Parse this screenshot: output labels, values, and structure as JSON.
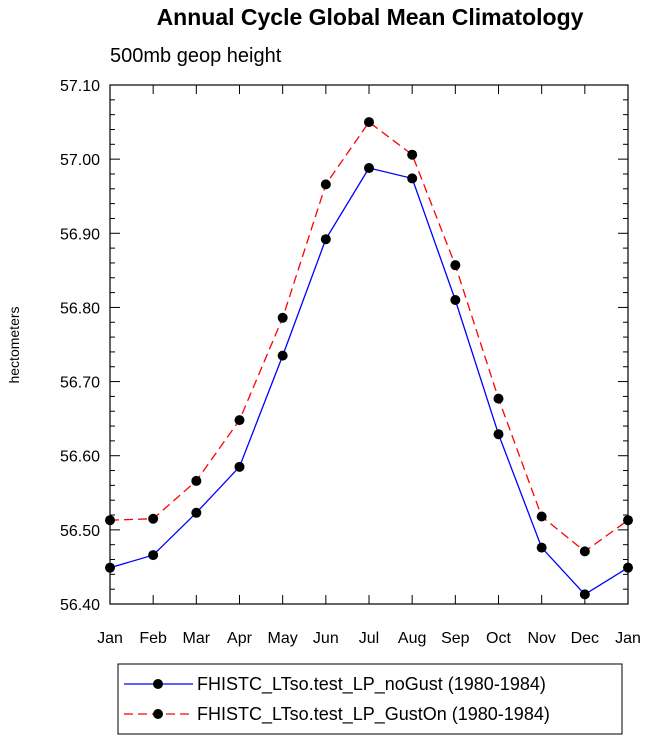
{
  "chart_data": {
    "type": "line",
    "title": "Annual Cycle Global Mean Climatology",
    "subtitle": "500mb geop height",
    "xlabel": "",
    "ylabel": "hectometers",
    "categories": [
      "Jan",
      "Feb",
      "Mar",
      "Apr",
      "May",
      "Jun",
      "Jul",
      "Aug",
      "Sep",
      "Oct",
      "Nov",
      "Dec",
      "Jan"
    ],
    "ylim": [
      56.4,
      57.1
    ],
    "yticks": [
      "56.40",
      "56.50",
      "56.60",
      "56.70",
      "56.80",
      "56.90",
      "57.00",
      "57.10"
    ],
    "legend_position": "bottom",
    "series": [
      {
        "name": "FHISTC_LTso.test_LP_noGust (1980-1984)",
        "color": "#0000ff",
        "style": "solid",
        "values": [
          56.449,
          56.466,
          56.523,
          56.585,
          56.735,
          56.892,
          56.988,
          56.974,
          56.81,
          56.629,
          56.476,
          56.413,
          56.449
        ]
      },
      {
        "name": "FHISTC_LTso.test_LP_GustOn (1980-1984)",
        "color": "#ff0000",
        "style": "dashed",
        "values": [
          56.513,
          56.515,
          56.566,
          56.648,
          56.786,
          56.966,
          57.05,
          57.006,
          56.857,
          56.677,
          56.518,
          56.471,
          56.513
        ]
      }
    ]
  }
}
